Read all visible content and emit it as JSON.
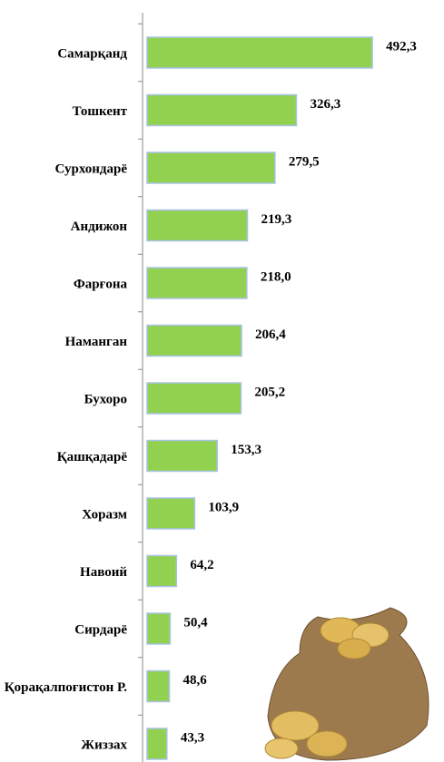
{
  "chart_data": {
    "type": "bar",
    "orientation": "horizontal",
    "categories": [
      "Самарқанд",
      "Тошкент",
      "Сурхондарё",
      "Андижон",
      "Фарғона",
      "Наманган",
      "Бухоро",
      "Қашқадарё",
      "Хоразм",
      "Навоий",
      "Сирдарё",
      "Қорақалпоғистон Р.",
      "Жиззах"
    ],
    "values": [
      492.3,
      326.3,
      279.5,
      219.3,
      218.0,
      206.4,
      205.2,
      153.3,
      103.9,
      64.2,
      50.4,
      48.6,
      43.3
    ],
    "value_labels": [
      "492,3",
      "326,3",
      "279,5",
      "219,3",
      "218,0",
      "206,4",
      "205,2",
      "153,3",
      "103,9",
      "64,2",
      "50,4",
      "48,6",
      "43,3"
    ],
    "color": "#92d050",
    "edge_color": "#a9c4e6",
    "xlim": [
      0,
      500
    ]
  }
}
